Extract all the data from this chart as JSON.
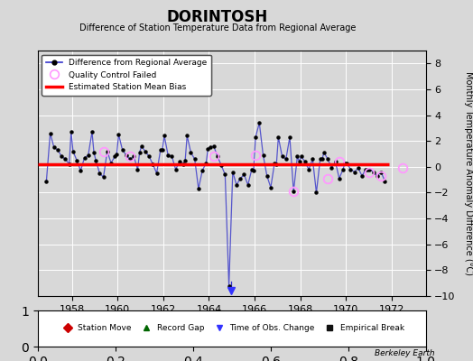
{
  "title": "DORINTOSH",
  "subtitle": "Difference of Station Temperature Data from Regional Average",
  "ylabel": "Monthly Temperature Anomaly Difference (°C)",
  "xlabel_years": [
    1958,
    1960,
    1962,
    1964,
    1966,
    1968,
    1970,
    1972
  ],
  "xlim": [
    1956.5,
    1973.5
  ],
  "ylim": [
    -10,
    9
  ],
  "yticks": [
    -10,
    -8,
    -6,
    -4,
    -2,
    0,
    2,
    4,
    6,
    8
  ],
  "bias_line_y": 0.18,
  "bias_line_start": 1956.5,
  "bias_line_end": 1971.9,
  "background_color": "#d8d8d8",
  "plot_bg_color": "#d8d8d8",
  "line_color": "#5555cc",
  "dot_color": "#000000",
  "bias_color": "#ff0000",
  "qc_color": "#ff99ff",
  "berkeley_earth_text": "Berkeley Earth",
  "series_x": [
    1956.875,
    1957.042,
    1957.208,
    1957.375,
    1957.542,
    1957.708,
    1957.875,
    1957.958,
    1958.042,
    1958.208,
    1958.375,
    1958.542,
    1958.708,
    1958.875,
    1958.958,
    1959.042,
    1959.208,
    1959.375,
    1959.542,
    1959.708,
    1959.875,
    1959.958,
    1960.042,
    1960.208,
    1960.375,
    1960.542,
    1960.708,
    1960.875,
    1960.958,
    1961.042,
    1961.208,
    1961.375,
    1961.542,
    1961.708,
    1961.875,
    1961.958,
    1962.042,
    1962.208,
    1962.375,
    1962.542,
    1962.708,
    1962.875,
    1962.958,
    1963.042,
    1963.208,
    1963.375,
    1963.542,
    1963.708,
    1963.875,
    1963.958,
    1964.042,
    1964.208,
    1964.375,
    1964.542,
    1964.708,
    1964.875,
    1965.042,
    1965.208,
    1965.375,
    1965.542,
    1965.708,
    1965.875,
    1965.958,
    1966.042,
    1966.208,
    1966.375,
    1966.542,
    1966.708,
    1966.875,
    1966.958,
    1967.042,
    1967.208,
    1967.375,
    1967.542,
    1967.708,
    1967.875,
    1967.958,
    1968.042,
    1968.208,
    1968.375,
    1968.542,
    1968.708,
    1968.875,
    1968.958,
    1969.042,
    1969.208,
    1969.375,
    1969.542,
    1969.708,
    1969.875,
    1969.958,
    1970.042,
    1970.208,
    1970.375,
    1970.542,
    1970.708,
    1970.875,
    1970.958,
    1971.042,
    1971.208,
    1971.375,
    1971.542,
    1971.708
  ],
  "series_y": [
    -1.1,
    2.6,
    1.5,
    1.3,
    0.8,
    0.6,
    0.2,
    2.7,
    1.2,
    0.5,
    -0.3,
    0.7,
    0.9,
    2.7,
    1.1,
    0.5,
    -0.5,
    -0.8,
    1.2,
    0.3,
    0.8,
    1.0,
    2.5,
    1.3,
    0.9,
    0.6,
    0.8,
    -0.2,
    1.1,
    1.6,
    1.2,
    0.8,
    0.2,
    -0.5,
    1.3,
    1.3,
    2.4,
    0.9,
    0.8,
    -0.2,
    0.4,
    0.2,
    0.5,
    2.4,
    1.1,
    0.6,
    -1.7,
    -0.3,
    0.3,
    1.4,
    1.5,
    1.6,
    0.8,
    0.1,
    -0.6,
    -9.2,
    -0.4,
    -1.4,
    -0.9,
    -0.6,
    -1.4,
    -0.2,
    -0.3,
    2.3,
    3.4,
    0.9,
    -0.7,
    -1.6,
    0.3,
    0.2,
    2.3,
    0.8,
    0.6,
    2.3,
    -1.9,
    0.8,
    0.4,
    0.8,
    0.4,
    -0.2,
    0.6,
    -2.0,
    0.6,
    0.6,
    1.1,
    0.6,
    -0.1,
    0.4,
    -0.9,
    -0.2,
    0.3,
    0.3,
    -0.2,
    -0.4,
    -0.1,
    -0.7,
    -0.2,
    -0.2,
    -0.2,
    -0.4,
    -0.7,
    -0.4,
    -1.1
  ],
  "qc_failed_x": [
    1959.375,
    1960.542,
    1964.208,
    1966.042,
    1967.708,
    1969.208,
    1969.708,
    1971.042,
    1971.542,
    1972.5
  ],
  "qc_failed_y": [
    1.2,
    0.8,
    0.8,
    0.9,
    -1.9,
    -0.9,
    0.4,
    -0.4,
    -0.7,
    -0.1
  ],
  "time_of_obs_x": 1964.96,
  "time_of_obs_y_top": -8.85,
  "time_of_obs_y_bottom": -9.6
}
